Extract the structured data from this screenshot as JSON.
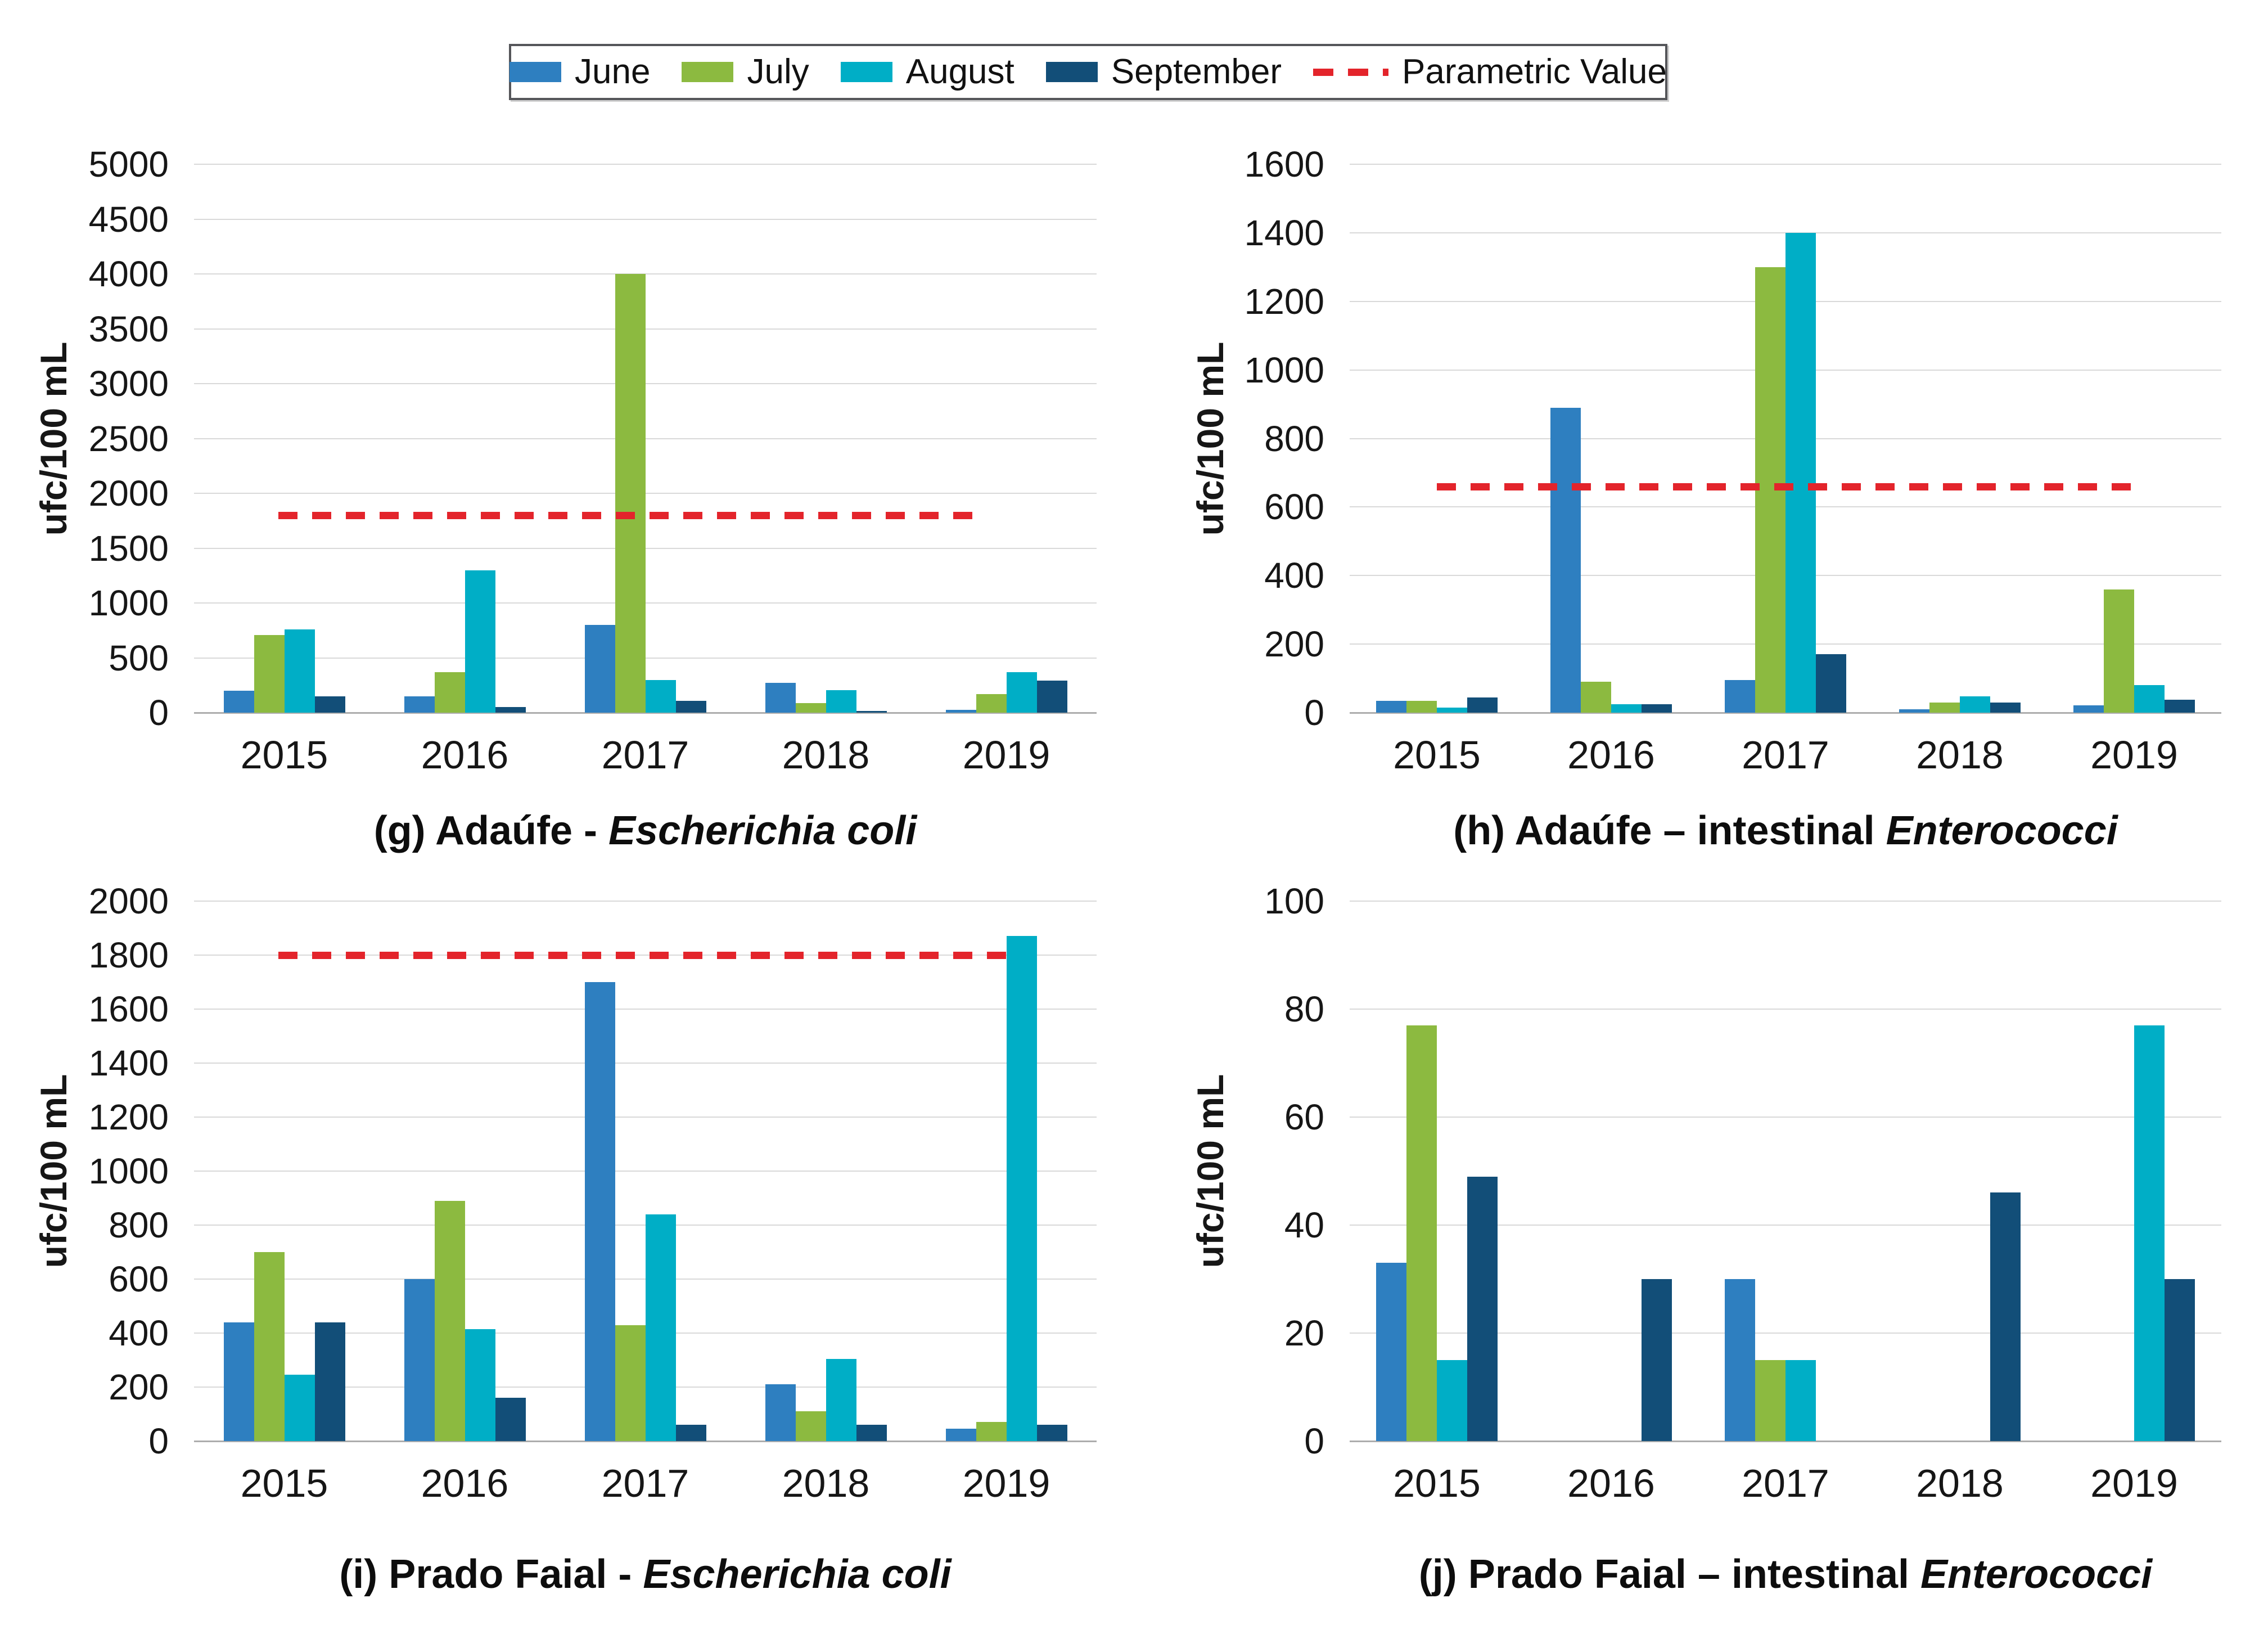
{
  "legend": {
    "items": [
      {
        "label": "June",
        "color": "#2E7FC0",
        "type": "box"
      },
      {
        "label": "July",
        "color": "#8CBA40",
        "type": "box"
      },
      {
        "label": "August",
        "color": "#00AEC6",
        "type": "box"
      },
      {
        "label": "September",
        "color": "#124E78",
        "type": "box"
      },
      {
        "label": "Parametric Value",
        "color": "#E3242B",
        "type": "dashed-line"
      }
    ]
  },
  "chart_data": [
    {
      "id": "g",
      "type": "bar",
      "caption_plain": "(g) Adaúfe - ",
      "caption_italic": "Escherichia coli",
      "ylabel": "ufc/100 mL",
      "ylim": [
        0,
        5000
      ],
      "ystep": 500,
      "yticks": [
        0,
        500,
        1000,
        1500,
        2000,
        2500,
        3000,
        3500,
        4000,
        4500,
        5000
      ],
      "parametric_value": 1800,
      "grid": true,
      "legend_position": "top",
      "categories": [
        "2015",
        "2016",
        "2017",
        "2018",
        "2019"
      ],
      "series": [
        {
          "name": "June",
          "color": "#2E7FC0",
          "values": [
            200,
            150,
            800,
            270,
            25
          ]
        },
        {
          "name": "July",
          "color": "#8CBA40",
          "values": [
            710,
            370,
            4000,
            85,
            170
          ]
        },
        {
          "name": "August",
          "color": "#00AEC6",
          "values": [
            760,
            1300,
            300,
            205,
            370
          ]
        },
        {
          "name": "September",
          "color": "#124E78",
          "values": [
            150,
            50,
            110,
            15,
            290
          ]
        }
      ]
    },
    {
      "id": "h",
      "type": "bar",
      "caption_plain": "(h) Adaúfe – intestinal ",
      "caption_italic": "Enterococci",
      "ylabel": "ufc/100 mL",
      "ylim": [
        0,
        1600
      ],
      "ystep": 200,
      "yticks": [
        0,
        200,
        400,
        600,
        800,
        1000,
        1200,
        1400,
        1600
      ],
      "parametric_value": 660,
      "grid": true,
      "legend_position": "top",
      "categories": [
        "2015",
        "2016",
        "2017",
        "2018",
        "2019"
      ],
      "series": [
        {
          "name": "June",
          "color": "#2E7FC0",
          "values": [
            35,
            890,
            95,
            10,
            22
          ]
        },
        {
          "name": "July",
          "color": "#8CBA40",
          "values": [
            35,
            90,
            1300,
            30,
            360
          ]
        },
        {
          "name": "August",
          "color": "#00AEC6",
          "values": [
            15,
            25,
            1400,
            48,
            80
          ]
        },
        {
          "name": "September",
          "color": "#124E78",
          "values": [
            45,
            25,
            170,
            30,
            38
          ]
        }
      ]
    },
    {
      "id": "i",
      "type": "bar",
      "caption_plain": "(i) Prado Faial - ",
      "caption_italic": "Escherichia coli",
      "ylabel": "ufc/100 mL",
      "ylim": [
        0,
        2000
      ],
      "ystep": 200,
      "yticks": [
        0,
        200,
        400,
        600,
        800,
        1000,
        1200,
        1400,
        1600,
        1800,
        2000
      ],
      "parametric_value": 1800,
      "grid": true,
      "legend_position": "top",
      "categories": [
        "2015",
        "2016",
        "2017",
        "2018",
        "2019"
      ],
      "series": [
        {
          "name": "June",
          "color": "#2E7FC0",
          "values": [
            440,
            600,
            1700,
            210,
            45
          ]
        },
        {
          "name": "July",
          "color": "#8CBA40",
          "values": [
            700,
            890,
            430,
            110,
            70
          ]
        },
        {
          "name": "August",
          "color": "#00AEC6",
          "values": [
            245,
            415,
            840,
            305,
            1870
          ]
        },
        {
          "name": "September",
          "color": "#124E78",
          "values": [
            440,
            160,
            60,
            60,
            60
          ]
        }
      ]
    },
    {
      "id": "j",
      "type": "bar",
      "caption_plain": "(j) Prado Faial – intestinal ",
      "caption_italic": "Enterococci",
      "ylabel": "ufc/100 mL",
      "ylim": [
        0,
        100
      ],
      "ystep": 20,
      "yticks": [
        0,
        20,
        40,
        60,
        80,
        100
      ],
      "parametric_value": null,
      "grid": true,
      "legend_position": "top",
      "categories": [
        "2015",
        "2016",
        "2017",
        "2018",
        "2019"
      ],
      "series": [
        {
          "name": "June",
          "color": "#2E7FC0",
          "values": [
            33,
            0,
            30,
            0,
            0
          ]
        },
        {
          "name": "July",
          "color": "#8CBA40",
          "values": [
            77,
            0,
            15,
            0,
            0
          ]
        },
        {
          "name": "August",
          "color": "#00AEC6",
          "values": [
            15,
            0,
            15,
            0,
            77
          ]
        },
        {
          "name": "September",
          "color": "#124E78",
          "values": [
            49,
            30,
            0,
            46,
            30
          ]
        }
      ]
    }
  ]
}
